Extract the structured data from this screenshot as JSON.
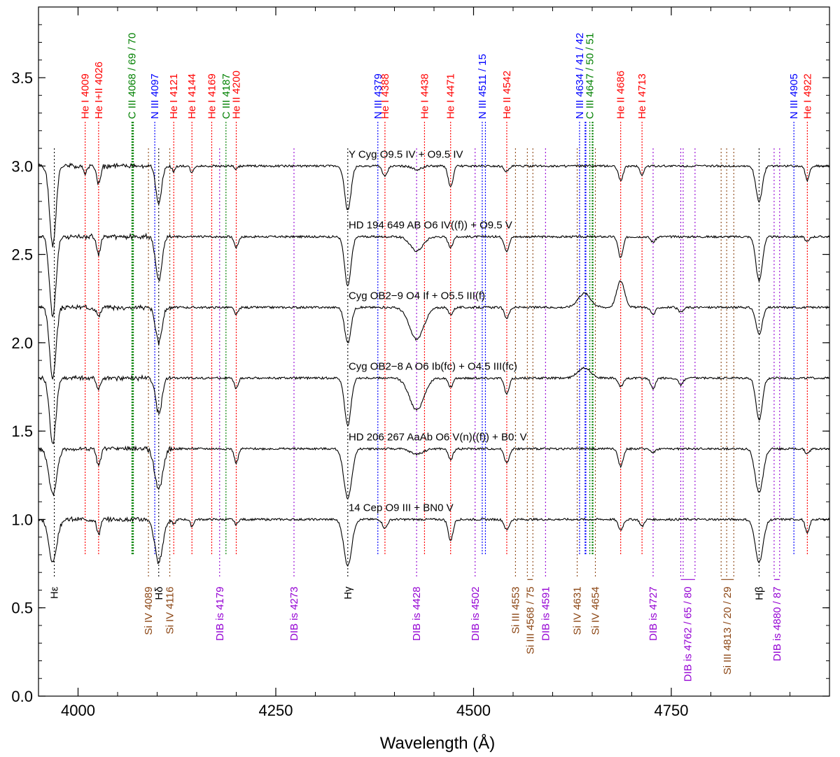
{
  "chart_data": {
    "type": "line",
    "title": "",
    "xlabel": "Wavelength (Å)",
    "ylabel": "",
    "xlim": [
      3950,
      4950
    ],
    "ylim": [
      0.0,
      3.9
    ],
    "x_ticks": [
      4000,
      4250,
      4500,
      4750
    ],
    "y_ticks": [
      0.0,
      0.5,
      1.0,
      1.5,
      2.0,
      2.5,
      3.0,
      3.5
    ],
    "tick_labels_x": [
      "4000",
      "4250",
      "4500",
      "4750"
    ],
    "tick_labels_y": [
      "0.0",
      "0.5",
      "1.0",
      "1.5",
      "2.0",
      "2.5",
      "3.0",
      "3.5"
    ],
    "colors": {
      "HeI": "#ff0000",
      "HeII": "#ff0000",
      "NIII": "#0000ff",
      "CIII": "#008000",
      "SiIV": "#8b4513",
      "SiIII": "#8b4513",
      "DIB": "#9400d3",
      "Balmer": "#000000"
    },
    "series": [
      {
        "name": "Y Cyg",
        "label": "Y Cyg    O9.5 IV + O9.5 IV",
        "offset": 3.0
      },
      {
        "name": "HD 194 649 AB",
        "label": "HD 194 649 AB    O6 IV((f)) + O9.5 V",
        "offset": 2.6
      },
      {
        "name": "Cyg OB2-9",
        "label": "Cyg OB2−9    O4 If + O5.5 III(f)",
        "offset": 2.2
      },
      {
        "name": "Cyg OB2-8 A",
        "label": "Cyg OB2−8 A    O6 Ib(fc) + O4.5 III(fc)",
        "offset": 1.8
      },
      {
        "name": "HD 206 267 AaAb",
        "label": "HD 206 267 AaAb    O6 V(n)((f)) + B0: V",
        "offset": 1.4
      },
      {
        "name": "14 Cep",
        "label": "14 Cep    O9 III + BN0 V",
        "offset": 1.0
      }
    ],
    "top_lines": [
      {
        "label": "He I 4009",
        "species": "HeI",
        "wl": [
          4009
        ]
      },
      {
        "label": "He I+II 4026",
        "species": "HeI",
        "wl": [
          4026
        ]
      },
      {
        "label": "C III 4068 / 69 / 70",
        "species": "CIII",
        "wl": [
          4068,
          4069,
          4070
        ]
      },
      {
        "label": "N III 4097",
        "species": "NIII",
        "wl": [
          4097
        ]
      },
      {
        "label": "He I 4121",
        "species": "HeI",
        "wl": [
          4121
        ]
      },
      {
        "label": "He I 4144",
        "species": "HeI",
        "wl": [
          4144
        ]
      },
      {
        "label": "He I 4169",
        "species": "HeI",
        "wl": [
          4169
        ]
      },
      {
        "label": "C III 4187",
        "species": "CIII",
        "wl": [
          4187
        ]
      },
      {
        "label": "He II 4200",
        "species": "HeII",
        "wl": [
          4200
        ]
      },
      {
        "label": "N III 4379",
        "species": "NIII",
        "wl": [
          4379
        ]
      },
      {
        "label": "He I 4388",
        "species": "HeI",
        "wl": [
          4388
        ]
      },
      {
        "label": "He I 4438",
        "species": "HeI",
        "wl": [
          4438
        ]
      },
      {
        "label": "He I 4471",
        "species": "HeI",
        "wl": [
          4471
        ]
      },
      {
        "label": "N III 4511 / 15",
        "species": "NIII",
        "wl": [
          4511,
          4515
        ]
      },
      {
        "label": "He II 4542",
        "species": "HeII",
        "wl": [
          4542
        ]
      },
      {
        "label": "N III 4634 / 41 / 42",
        "species": "NIII",
        "wl": [
          4634,
          4641,
          4642
        ]
      },
      {
        "label": "C III 4647 / 50 / 51",
        "species": "CIII",
        "wl": [
          4647,
          4650,
          4651
        ]
      },
      {
        "label": "He II 4686",
        "species": "HeII",
        "wl": [
          4686
        ]
      },
      {
        "label": "He I 4713",
        "species": "HeI",
        "wl": [
          4713
        ]
      },
      {
        "label": "N III 4905",
        "species": "NIII",
        "wl": [
          4905
        ]
      },
      {
        "label": "He I 4922",
        "species": "HeI",
        "wl": [
          4922
        ]
      }
    ],
    "bottom_lines": [
      {
        "label": "Hε",
        "species": "Balmer",
        "wl": [
          3970
        ]
      },
      {
        "label": "Si IV 4089",
        "species": "SiIV",
        "wl": [
          4089
        ]
      },
      {
        "label": "Hδ",
        "species": "Balmer",
        "wl": [
          4102
        ]
      },
      {
        "label": "Si IV 4116",
        "species": "SiIV",
        "wl": [
          4116
        ]
      },
      {
        "label": "DIB is 4179",
        "species": "DIB",
        "wl": [
          4179
        ]
      },
      {
        "label": "DIB is 4273",
        "species": "DIB",
        "wl": [
          4273
        ]
      },
      {
        "label": "Hγ",
        "species": "Balmer",
        "wl": [
          4341
        ]
      },
      {
        "label": "DIB is 4428",
        "species": "DIB",
        "wl": [
          4428
        ]
      },
      {
        "label": "DIB is 4502",
        "species": "DIB",
        "wl": [
          4502
        ]
      },
      {
        "label": "Si III 4553",
        "species": "SiIII",
        "wl": [
          4553
        ]
      },
      {
        "label": "Si III 4568 / 75",
        "species": "SiIII",
        "wl": [
          4568,
          4575
        ]
      },
      {
        "label": "DIB is 4591",
        "species": "DIB",
        "wl": [
          4591
        ]
      },
      {
        "label": "Si IV 4631",
        "species": "SiIV",
        "wl": [
          4631
        ]
      },
      {
        "label": "Si IV 4654",
        "species": "SiIV",
        "wl": [
          4654
        ]
      },
      {
        "label": "DIB is 4727",
        "species": "DIB",
        "wl": [
          4727
        ]
      },
      {
        "label": "DIB is 4762 / 65 / 80",
        "species": "DIB",
        "wl": [
          4762,
          4765,
          4780
        ]
      },
      {
        "label": "Si III 4813 / 20 / 29",
        "species": "SiIII",
        "wl": [
          4813,
          4820,
          4829
        ]
      },
      {
        "label": "Hβ",
        "species": "Balmer",
        "wl": [
          4861
        ]
      },
      {
        "label": "DIB is 4880 / 87",
        "species": "DIB",
        "wl": [
          4880,
          4887
        ]
      }
    ],
    "features": {
      "Y Cyg": [
        [
          3968,
          0.45,
          4
        ],
        [
          4009,
          0.04,
          2
        ],
        [
          4026,
          0.1,
          2.5
        ],
        [
          4102,
          0.22,
          3.5
        ],
        [
          4121,
          0.03,
          2
        ],
        [
          4144,
          0.04,
          2
        ],
        [
          4200,
          0.02,
          2
        ],
        [
          4341,
          0.25,
          4
        ],
        [
          4388,
          0.06,
          3
        ],
        [
          4471,
          0.12,
          3
        ],
        [
          4542,
          0.03,
          3
        ],
        [
          4686,
          0.08,
          3
        ],
        [
          4713,
          0.05,
          2.5
        ],
        [
          4861,
          0.2,
          4
        ],
        [
          4922,
          0.08,
          2.5
        ],
        [
          4428,
          0.02,
          6
        ]
      ],
      "HD 194 649 AB": [
        [
          3968,
          0.45,
          4
        ],
        [
          4026,
          0.1,
          2.5
        ],
        [
          4102,
          0.25,
          4
        ],
        [
          4200,
          0.06,
          2.5
        ],
        [
          4341,
          0.28,
          4
        ],
        [
          4428,
          0.08,
          8
        ],
        [
          4471,
          0.06,
          3
        ],
        [
          4542,
          0.08,
          3
        ],
        [
          4686,
          0.12,
          3
        ],
        [
          4727,
          0.03,
          3
        ],
        [
          4861,
          0.25,
          4
        ],
        [
          4922,
          0.03,
          2.5
        ]
      ],
      "Cyg OB2-9": [
        [
          3968,
          0.4,
          4
        ],
        [
          4026,
          0.05,
          2.5
        ],
        [
          4102,
          0.2,
          4
        ],
        [
          4200,
          0.04,
          2.5
        ],
        [
          4341,
          0.2,
          4
        ],
        [
          4428,
          0.18,
          9
        ],
        [
          4471,
          0.04,
          3
        ],
        [
          4542,
          0.06,
          3
        ],
        [
          4686,
          -0.15,
          5
        ],
        [
          4727,
          0.04,
          3
        ],
        [
          4762,
          0.03,
          3
        ],
        [
          4861,
          0.15,
          4
        ],
        [
          4640,
          -0.08,
          8
        ]
      ],
      "Cyg OB2-8 A": [
        [
          3968,
          0.37,
          4
        ],
        [
          4026,
          0.06,
          2.5
        ],
        [
          4102,
          0.2,
          4
        ],
        [
          4200,
          0.06,
          2.5
        ],
        [
          4341,
          0.27,
          4
        ],
        [
          4428,
          0.18,
          9
        ],
        [
          4471,
          0.05,
          3
        ],
        [
          4542,
          0.09,
          3
        ],
        [
          4686,
          0.05,
          3
        ],
        [
          4727,
          0.06,
          3
        ],
        [
          4762,
          0.04,
          3
        ],
        [
          4861,
          0.24,
          4
        ],
        [
          4640,
          -0.06,
          8
        ]
      ],
      "HD 206 267 AaAb": [
        [
          3968,
          0.26,
          5
        ],
        [
          4026,
          0.1,
          2.5
        ],
        [
          4102,
          0.23,
          5
        ],
        [
          4200,
          0.08,
          2.5
        ],
        [
          4341,
          0.28,
          5
        ],
        [
          4428,
          0.03,
          8
        ],
        [
          4471,
          0.06,
          3
        ],
        [
          4542,
          0.08,
          3
        ],
        [
          4686,
          0.1,
          3
        ],
        [
          4727,
          0.02,
          3
        ],
        [
          4861,
          0.25,
          5
        ],
        [
          4922,
          0.03,
          2.5
        ]
      ],
      "14 Cep": [
        [
          3968,
          0.24,
          5
        ],
        [
          4026,
          0.08,
          2.5
        ],
        [
          4102,
          0.24,
          5
        ],
        [
          4121,
          0.03,
          2
        ],
        [
          4144,
          0.04,
          2
        ],
        [
          4200,
          0.03,
          2
        ],
        [
          4341,
          0.26,
          5
        ],
        [
          4388,
          0.05,
          3
        ],
        [
          4471,
          0.12,
          3
        ],
        [
          4542,
          0.06,
          3
        ],
        [
          4686,
          0.06,
          3
        ],
        [
          4713,
          0.04,
          2.5
        ],
        [
          4861,
          0.24,
          5
        ],
        [
          4922,
          0.08,
          2.5
        ]
      ]
    }
  }
}
